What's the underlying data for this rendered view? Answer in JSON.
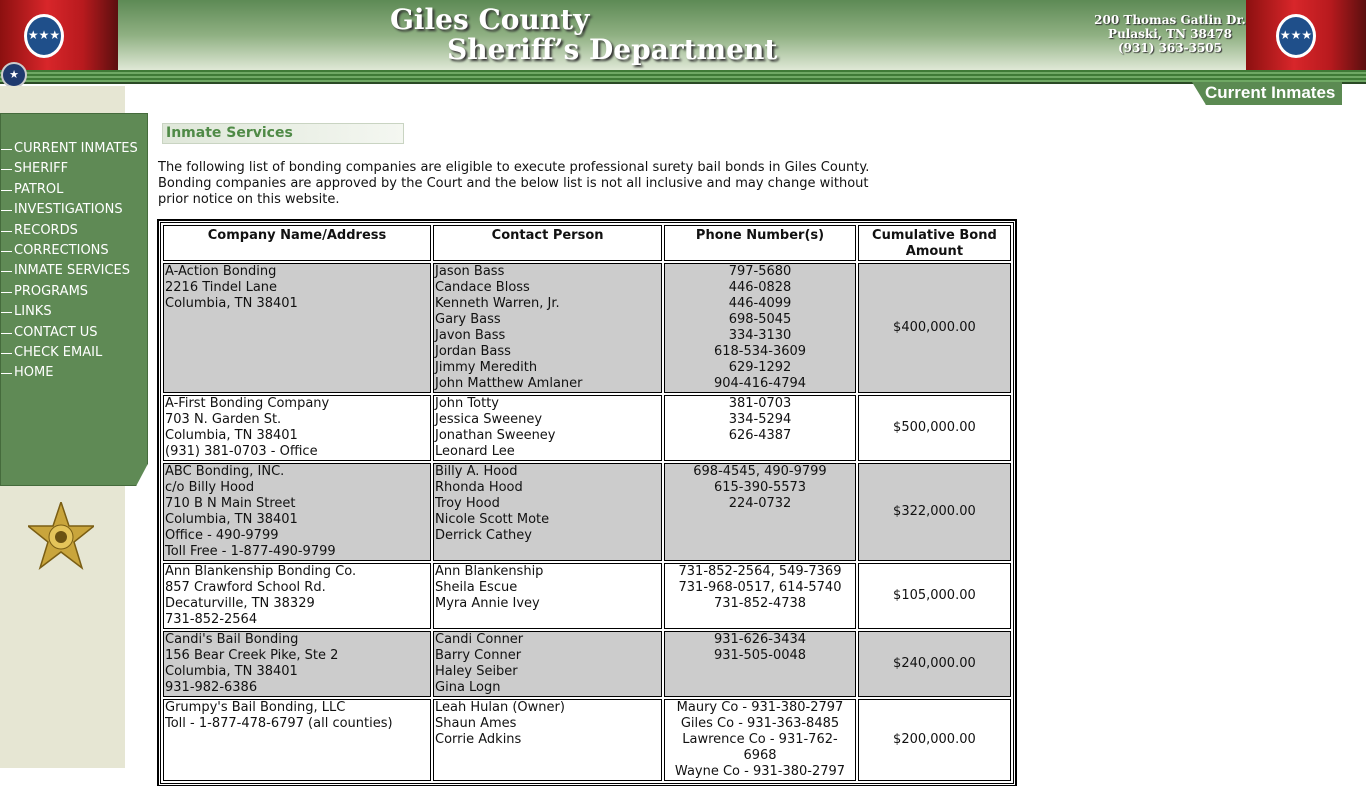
{
  "header": {
    "title_line1": "Giles County",
    "title_line2": "Sheriff’s Department",
    "address": [
      "200 Thomas Gatlin Dr.",
      "Pulaski, TN 38478",
      "(931) 363-3505"
    ],
    "current_inmates_button": "Current Inmates"
  },
  "colors": {
    "brand_green": "#5f8a55",
    "title_green": "#4f8a46",
    "row_gray": "#cccccc"
  },
  "nav": [
    "CURRENT INMATES",
    "SHERIFF",
    "PATROL",
    "INVESTIGATIONS",
    "RECORDS",
    "CORRECTIONS",
    "INMATE SERVICES",
    "PROGRAMS",
    "LINKS",
    "CONTACT US",
    "CHECK EMAIL",
    "HOME"
  ],
  "main": {
    "section_title": "Inmate Services",
    "intro": "The following list of bonding companies are eligible to execute professional surety bail bonds in Giles County. Bonding companies are approved by the Court and the below list is not all inclusive and may change without prior notice on this website.",
    "table": {
      "headers": [
        "Company Name/Address",
        "Contact Person",
        "Phone Number(s)",
        "Cumulative Bond Amount"
      ],
      "rows": [
        {
          "company": [
            "A-Action Bonding",
            "2216 Tindel Lane",
            "Columbia, TN 38401"
          ],
          "contacts": [
            "Jason Bass",
            "Candace Bloss",
            "Kenneth Warren, Jr.",
            "Gary Bass",
            "Javon Bass",
            "Jordan Bass",
            "Jimmy Meredith",
            "John Matthew Amlaner"
          ],
          "phones": [
            "797-5680",
            "446-0828",
            "446-4099",
            "698-5045",
            "334-3130",
            "618-534-3609",
            "629-1292",
            "904-416-4794"
          ],
          "amount": "$400,000.00"
        },
        {
          "company": [
            "A-First Bonding Company",
            "703 N. Garden St.",
            "Columbia, TN 38401",
            "(931) 381-0703 - Office"
          ],
          "contacts": [
            "John Totty",
            "Jessica Sweeney",
            "Jonathan Sweeney",
            "Leonard Lee"
          ],
          "phones": [
            "381-0703",
            "334-5294",
            "626-4387"
          ],
          "amount": "$500,000.00"
        },
        {
          "company": [
            "ABC Bonding, INC.",
            "c/o Billy Hood",
            "710 B N Main Street",
            "Columbia, TN 38401",
            "Office - 490-9799",
            "Toll Free - 1-877-490-9799"
          ],
          "contacts": [
            "Billy A. Hood",
            "Rhonda Hood",
            "Troy Hood",
            "Nicole Scott Mote",
            "Derrick Cathey"
          ],
          "phones": [
            "698-4545, 490-9799",
            "615-390-5573",
            "224-0732"
          ],
          "amount": "$322,000.00"
        },
        {
          "company": [
            "Ann Blankenship Bonding Co.",
            "857 Crawford School Rd.",
            "Decaturville, TN 38329",
            "731-852-2564"
          ],
          "contacts": [
            "Ann Blankenship",
            "Sheila Escue",
            "Myra Annie Ivey"
          ],
          "phones": [
            "731-852-2564, 549-7369",
            "731-968-0517, 614-5740",
            "731-852-4738"
          ],
          "amount": "$105,000.00"
        },
        {
          "company": [
            "Candi's Bail Bonding",
            "156 Bear Creek Pike, Ste 2",
            "Columbia, TN 38401",
            "931-982-6386"
          ],
          "contacts": [
            "Candi Conner",
            "Barry Conner",
            "Haley Seiber",
            "Gina Logn"
          ],
          "phones": [
            "931-626-3434",
            "931-505-0048"
          ],
          "amount": "$240,000.00"
        },
        {
          "company": [
            "Grumpy's Bail Bonding, LLC",
            "Toll - 1-877-478-6797 (all counties)"
          ],
          "contacts": [
            "Leah Hulan (Owner)",
            "Shaun Ames",
            "Corrie Adkins"
          ],
          "phones": [
            "Maury Co - 931-380-2797",
            "Giles Co - 931-363-8485",
            "Lawrence Co - 931-762-6968",
            "Wayne Co - 931-380-2797"
          ],
          "amount": "$200,000.00"
        }
      ]
    }
  }
}
